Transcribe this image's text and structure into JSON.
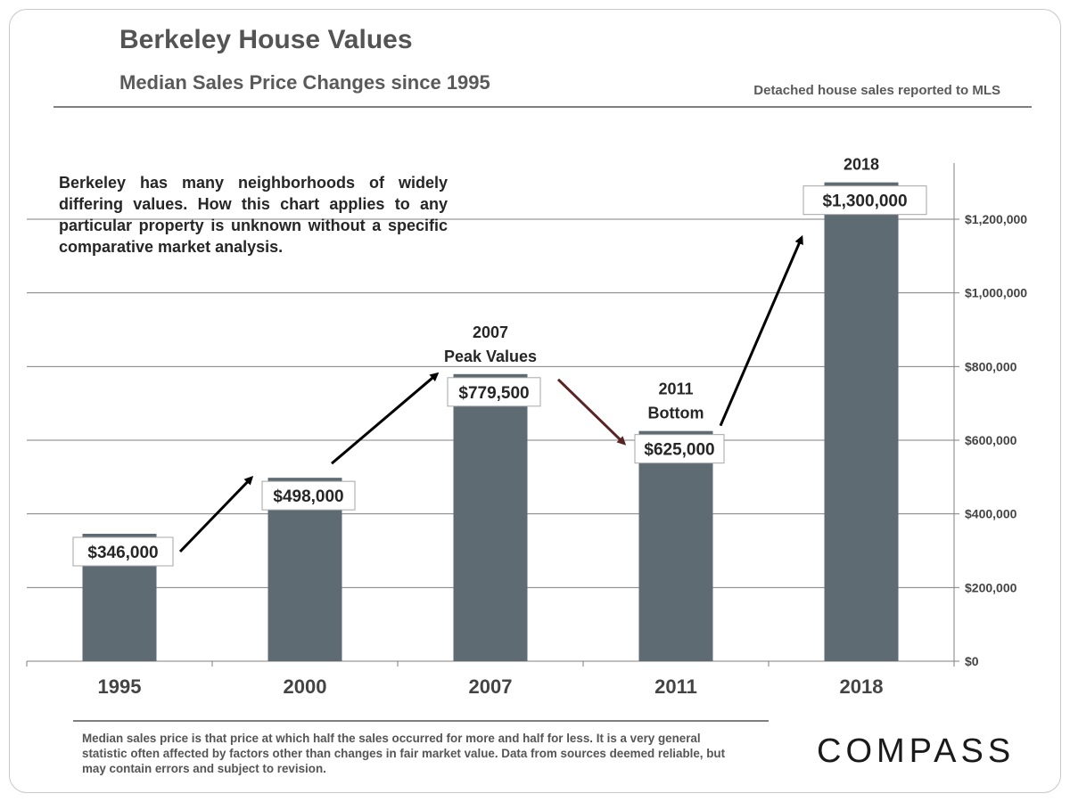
{
  "header": {
    "title": "Berkeley House Values",
    "subtitle": "Median Sales Price Changes since 1995",
    "source_note": "Detached house sales reported to MLS"
  },
  "disclaimer": "Berkeley has many neighborhoods of widely differing values. How this chart applies to any particular property is unknown without a specific comparative market analysis.",
  "footnote": "Median sales price is that price at which half the sales occurred for more and half for less. It is a very general statistic often affected by factors other than changes in fair market value. Data from sources deemed reliable, but may contain errors and subject to revision.",
  "logo": "COMPASS",
  "colors": {
    "bar": "#5f6b73",
    "trend_up_arrow": "#000000",
    "trend_down_arrow": "#5a2424",
    "gridline": "#7f7f7f",
    "label_box_border": "#a6a6a6"
  },
  "chart_data": {
    "type": "bar",
    "categories": [
      "1995",
      "2000",
      "2007",
      "2011",
      "2018"
    ],
    "values": [
      346000,
      498000,
      779500,
      625000,
      1300000
    ],
    "value_labels": [
      "$346,000",
      "$498,000",
      "$779,500",
      "$625,000",
      "$1,300,000"
    ],
    "annotations": [
      {
        "category": "2007",
        "lines": [
          "2007",
          "Peak Values"
        ]
      },
      {
        "category": "2011",
        "lines": [
          "2011",
          "Bottom"
        ]
      },
      {
        "category": "2018",
        "lines": [
          "2018"
        ]
      }
    ],
    "trend_arrows": [
      {
        "from": "1995",
        "to": "2000",
        "direction": "up"
      },
      {
        "from": "2000",
        "to": "2007",
        "direction": "up"
      },
      {
        "from": "2007",
        "to": "2011",
        "direction": "down"
      },
      {
        "from": "2011",
        "to": "2018",
        "direction": "up"
      }
    ],
    "y_ticks": [
      0,
      200000,
      400000,
      600000,
      800000,
      1000000,
      1200000
    ],
    "y_tick_labels": [
      "$0",
      "$200,000",
      "$400,000",
      "$600,000",
      "$800,000",
      "$1,000,000",
      "$1,200,000"
    ],
    "ylim": [
      0,
      1350000
    ],
    "y_axis_side": "right",
    "grid": true,
    "xlabel": "",
    "ylabel": ""
  }
}
